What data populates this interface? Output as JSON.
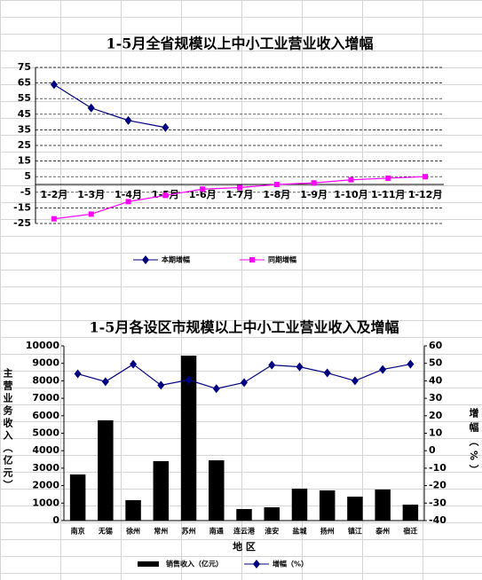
{
  "chart_data": [
    {
      "type": "line",
      "title": "1-5月全省规模以上中小工业营业收入增幅",
      "categories": [
        "1-2月",
        "1-3月",
        "1-4月",
        "1-5月",
        "1-6月",
        "1-7月",
        "1-8月",
        "1-9月",
        "1-10月",
        "1-11月",
        "1-12月"
      ],
      "series": [
        {
          "name": "本期增幅",
          "color": "#000080",
          "marker": "diamond",
          "values": [
            64,
            49,
            41,
            36.5,
            null,
            null,
            null,
            null,
            null,
            null,
            null
          ]
        },
        {
          "name": "同期增幅",
          "color": "#ff00ff",
          "marker": "square",
          "values": [
            -22,
            -19,
            -11,
            -7,
            -3,
            -2,
            0,
            1,
            3,
            4,
            5
          ]
        }
      ],
      "ylim": [
        -25,
        75
      ],
      "yticks": [
        -25,
        -15,
        -5,
        5,
        15,
        25,
        35,
        45,
        55,
        65,
        75
      ],
      "grid": true,
      "legend": "bottom"
    },
    {
      "type": "bar",
      "title": "1-5月各设区市规模以上中小工业营业收入及增幅",
      "categories": [
        "南京",
        "无锡",
        "徐州",
        "常州",
        "苏州",
        "南通",
        "连云港",
        "淮安",
        "盐城",
        "扬州",
        "镇江",
        "泰州",
        "宿迁"
      ],
      "x_label": "地 区",
      "y_label": "主营业务收入（亿元）",
      "y2_label": "增幅（%）",
      "series": [
        {
          "name": "销售收入（亿元）",
          "color": "#000000",
          "type": "bar",
          "values": [
            2640,
            5740,
            1170,
            3400,
            9440,
            3450,
            660,
            760,
            1830,
            1730,
            1370,
            1780,
            910
          ]
        },
        {
          "name": "增幅（%）",
          "color": "#000080",
          "type": "line",
          "marker": "diamond",
          "axis": "y2",
          "values": [
            44,
            39.5,
            49.5,
            37.5,
            40.5,
            35.5,
            39,
            49,
            48,
            44.5,
            40,
            46.5,
            49.5
          ]
        }
      ],
      "ylim": [
        0,
        10000
      ],
      "yticks": [
        0,
        1000,
        2000,
        3000,
        4000,
        5000,
        6000,
        7000,
        8000,
        9000,
        10000
      ],
      "y2lim": [
        -40,
        60
      ],
      "y2ticks": [
        -40,
        -30,
        -20,
        -10,
        0,
        10,
        20,
        30,
        40,
        50,
        60
      ],
      "legend": "bottom"
    }
  ]
}
